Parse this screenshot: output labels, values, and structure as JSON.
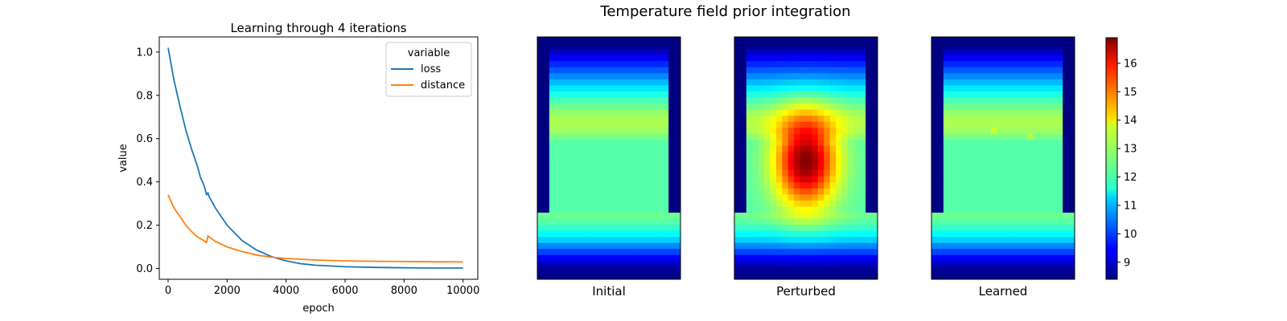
{
  "figure": {
    "suptitle": "Temperature field prior integration"
  },
  "chart_data": [
    {
      "type": "line",
      "title": "Learning through 4 iterations",
      "xlabel": "epoch",
      "ylabel": "value",
      "xlim": [
        -300,
        10500
      ],
      "ylim": [
        -0.05,
        1.07
      ],
      "xticks": [
        0,
        2000,
        4000,
        6000,
        8000,
        10000
      ],
      "xtick_labels": [
        "0",
        "2000",
        "4000",
        "6000",
        "8000",
        "10000"
      ],
      "yticks": [
        0.0,
        0.2,
        0.4,
        0.6,
        0.8,
        1.0
      ],
      "ytick_labels": [
        "0.0",
        "0.2",
        "0.4",
        "0.6",
        "0.8",
        "1.0"
      ],
      "grid": false,
      "legend": {
        "title": "variable",
        "placement": "upper right"
      },
      "series": [
        {
          "name": "loss",
          "color": "#1f77b4",
          "x": [
            0,
            200,
            400,
            600,
            800,
            1000,
            1100,
            1200,
            1250,
            1300,
            1350,
            1400,
            1600,
            2000,
            2500,
            3000,
            3500,
            4000,
            4500,
            5000,
            6000,
            7000,
            8000,
            9000,
            10000
          ],
          "y": [
            1.02,
            0.87,
            0.75,
            0.64,
            0.55,
            0.47,
            0.42,
            0.39,
            0.37,
            0.34,
            0.35,
            0.33,
            0.28,
            0.2,
            0.13,
            0.085,
            0.055,
            0.035,
            0.022,
            0.015,
            0.008,
            0.005,
            0.003,
            0.002,
            0.002
          ]
        },
        {
          "name": "distance",
          "color": "#ff7f0e",
          "x": [
            0,
            200,
            400,
            600,
            800,
            1000,
            1200,
            1300,
            1350,
            1400,
            1600,
            2000,
            2500,
            3000,
            3500,
            4000,
            5000,
            6000,
            7000,
            8000,
            9000,
            10000
          ],
          "y": [
            0.34,
            0.28,
            0.24,
            0.2,
            0.17,
            0.145,
            0.13,
            0.12,
            0.15,
            0.145,
            0.125,
            0.1,
            0.078,
            0.062,
            0.052,
            0.046,
            0.039,
            0.035,
            0.033,
            0.032,
            0.031,
            0.03
          ]
        }
      ]
    },
    {
      "type": "heatmap",
      "colormap": "jet",
      "vmin": 8.4,
      "vmax": 16.9,
      "colorbar_ticks": [
        9,
        10,
        11,
        12,
        13,
        14,
        15,
        16
      ],
      "colorbar_tick_labels": [
        "9",
        "10",
        "11",
        "12",
        "13",
        "14",
        "15",
        "16"
      ],
      "grid_size": {
        "columns": 24,
        "rows": 40
      },
      "base_field": {
        "cold_value": 8.4,
        "top_rows": [
          8.5,
          9.0,
          9.4,
          9.8,
          10.2,
          10.6,
          11.0,
          11.4,
          11.8,
          12.2,
          12.5,
          12.8,
          13.0,
          13.0,
          12.9,
          12.6
        ],
        "interior_value": 12.3,
        "bottom_rows_from_row_29": [
          12.5,
          12.3,
          12.0,
          11.6,
          11.2,
          10.6,
          10.0,
          9.4,
          8.9,
          8.6,
          8.45
        ],
        "side_column_to_row": 28
      },
      "panels": [
        {
          "label": "Initial",
          "perturbation": null,
          "spots": []
        },
        {
          "label": "Perturbed",
          "perturbation": {
            "amplitude": 4.6,
            "center_col": 11.5,
            "center_row": 20,
            "sigma_col": 3.6,
            "sigma_row": 5.2
          },
          "spots": []
        },
        {
          "label": "Learned",
          "perturbation": null,
          "spots": [
            {
              "col": 10,
              "row": 15,
              "value": 13.3
            },
            {
              "col": 16,
              "row": 16,
              "value": 13.0
            }
          ]
        }
      ]
    }
  ]
}
